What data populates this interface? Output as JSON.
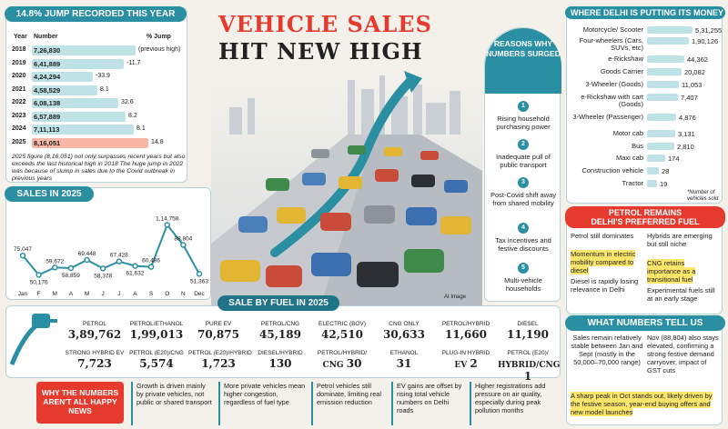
{
  "title": {
    "line1": "VEHICLE SALES",
    "line2": "HIT NEW HIGH"
  },
  "jump": {
    "header": "14.8% JUMP RECORDED THIS YEAR",
    "col_year": "Year",
    "col_number": "Number",
    "col_jump": "% Jump",
    "rows": [
      {
        "year": "2018",
        "number": "7,26,830",
        "jump": "(previous high)",
        "value": 726830
      },
      {
        "year": "2019",
        "number": "6,41,889",
        "jump": "-11.7",
        "value": 641889
      },
      {
        "year": "2020",
        "number": "4,24,294",
        "jump": "-33.9",
        "value": 424294
      },
      {
        "year": "2021",
        "number": "4,58,529",
        "jump": "8.1",
        "value": 458529
      },
      {
        "year": "2022",
        "number": "6,08,138",
        "jump": "32.6",
        "value": 608138
      },
      {
        "year": "2023",
        "number": "6,57,889",
        "jump": "8.2",
        "value": 657889
      },
      {
        "year": "2024",
        "number": "7,11,113",
        "jump": "8.1",
        "value": 711113
      },
      {
        "year": "2025",
        "number": "8,16,051",
        "jump": "14.8",
        "value": 816051
      }
    ],
    "note": "2025 figure (8,16,051) not only surpasses recent years but also exceeds the last historical high in 2018 The huge jump in 2022 was because of slump in sales due to the Covid outbreak in previous years"
  },
  "chart_data": {
    "type": "line",
    "title": "SALES IN 2025",
    "categories": [
      "Jan",
      "F",
      "M",
      "A",
      "M",
      "J",
      "J",
      "A",
      "S",
      "O",
      "N",
      "Dec"
    ],
    "values": [
      75047,
      50176,
      59672,
      58859,
      69448,
      58378,
      67428,
      61632,
      60486,
      114758,
      88804,
      51363
    ],
    "value_labels": [
      "75,047",
      "50,176",
      "59,672",
      "58,859",
      "69,448",
      "58,378",
      "67,428",
      "61,632",
      "60,486",
      "1,14,758",
      "88,804",
      "51,363"
    ],
    "ylim": [
      40000,
      120000
    ],
    "grid": false,
    "colors": {
      "line": "#2b8fa3"
    }
  },
  "reasons": {
    "header": "REASONS WHY NUMBERS SURGED",
    "items": [
      {
        "num": "1",
        "text": "Rising household purchasing power"
      },
      {
        "num": "2",
        "text": "Inadequate pull of public transport"
      },
      {
        "num": "3",
        "text": "Post-Covid shift away from shared mobility"
      },
      {
        "num": "4",
        "text": "Tax incentives and festive discounts"
      },
      {
        "num": "5",
        "text": "Multi-vehicle households"
      }
    ]
  },
  "illustration": {
    "credit": "AI Image"
  },
  "money": {
    "header": "WHERE DELHI IS PUTTING ITS MONEY",
    "note": "*Number of vehicles sold",
    "items": [
      {
        "label": "Motorcycle/ Scooter",
        "value": "5,31,255",
        "n": 531255
      },
      {
        "label": "Four-wheelers (Cars, SUVs, etc)",
        "value": "1,90,126",
        "n": 190126
      },
      {
        "label": "e-Rickshaw",
        "value": "44,362",
        "n": 44362
      },
      {
        "label": "Goods Carrier",
        "value": "20,082",
        "n": 20082
      },
      {
        "label": "3-Wheeler (Goods)",
        "value": "11,053",
        "n": 11053
      },
      {
        "label": "e-Rickshaw with cart (Goods)",
        "value": "7,407",
        "n": 7407
      },
      {
        "label": "3-Wheeler (Passenger)",
        "value": "4,876",
        "n": 4876
      },
      {
        "label": "Motor cab",
        "value": "3,131",
        "n": 3131
      },
      {
        "label": "Bus",
        "value": "2,810",
        "n": 2810
      },
      {
        "label": "Maxi cab",
        "value": "174",
        "n": 174
      },
      {
        "label": "Construction vehicle",
        "value": "28",
        "n": 28
      },
      {
        "label": "Tractor",
        "value": "19",
        "n": 19
      }
    ]
  },
  "petrol": {
    "header_line1": "PETROL REMAINS",
    "header_line2": "DELHI'S PREFERRED FUEL",
    "left_a": "Petrol still dominates",
    "left_b": "Momentum in electric mobility compared to diesel",
    "left_c": "Diesel is rapidly losing relevance in Delhi",
    "right_a": "Hybrids are emerging but still niche",
    "right_b": "CNG retains importance as a transitional fuel",
    "right_c": "Experimental fuels still at an early stage"
  },
  "tell": {
    "header": "WHAT NUMBERS TELL US",
    "left": "Sales remain relatively stable between Jan and Sept (mostly in the 50,000–70,000 range)",
    "right": "Nov (88,804) also stays elevated, confirming a strong festive demand carryover, impact of GST cuts",
    "bottom": "A sharp peak in Oct stands out, likely driven by the festive season, year-end buying offers and new model launches"
  },
  "fuel": {
    "header": "SALE BY FUEL IN 2025",
    "row1": [
      {
        "label": "PETROL",
        "value": "3,89,762"
      },
      {
        "label": "PETROL/ETHANOL",
        "value": "1,99,013"
      },
      {
        "label": "PURE EV",
        "value": "70,875"
      },
      {
        "label": "PETROL/CNG",
        "value": "45,189"
      },
      {
        "label": "ELECTRIC (BOV)",
        "value": "42,510"
      },
      {
        "label": "CNG ONLY",
        "value": "30,633"
      },
      {
        "label": "PETROL/HYBRID",
        "value": "11,660"
      },
      {
        "label": "DIESEL",
        "value": "11,190"
      }
    ],
    "row2": [
      {
        "label": "STRONG HYBRID EV",
        "value": "7,723"
      },
      {
        "label": "PETROL (E20)/CNG",
        "value": "5,574"
      },
      {
        "label": "PETROL (E20)/HYBRID",
        "value": "1,723"
      },
      {
        "label": "DIESEL/HYBRID",
        "value": "130"
      },
      {
        "label": "PETROL/HYBRID/",
        "sub": "CNG",
        "value": "30"
      },
      {
        "label": "ETHANOL",
        "value": "31"
      },
      {
        "label": "PLUG-IN HYBRID",
        "sub": "EV",
        "value": "2"
      },
      {
        "label": "PETROL (E20)/",
        "sub": "HYBRID/CNG",
        "value": "1"
      }
    ]
  },
  "why": {
    "header": "WHY THE NUMBERS AREN'T ALL HAPPY NEWS",
    "items": [
      "Growth is driven mainly by private vehicles, not public or shared transport",
      "More private vehicles mean higher congestion, regardless of fuel type",
      "Petrol vehicles still dominate, limiting real emission reduction",
      "EV gains are offset by rising total vehicle numbers on Delhi roads",
      "Higher registrations add pressure on air quality, especially during peak pollution months"
    ]
  },
  "colors": {
    "accent": "#2b8fa3",
    "red": "#e63a2f",
    "highlight": "#fbe56a"
  }
}
